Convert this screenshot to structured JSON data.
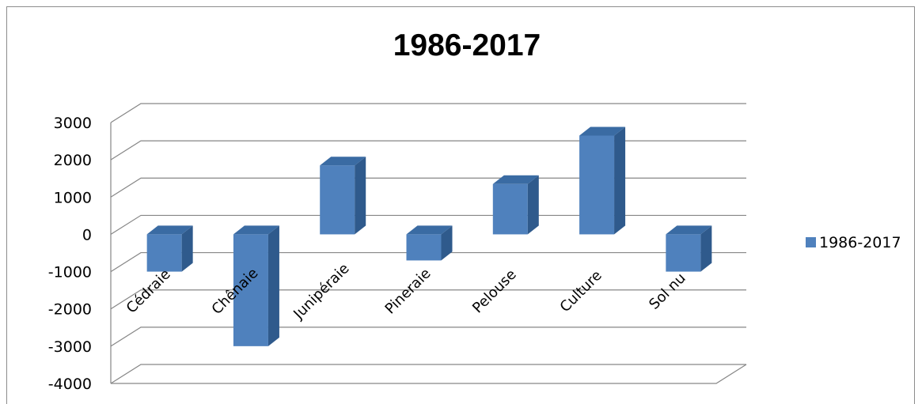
{
  "chart_data": {
    "type": "bar",
    "title": "1986-2017",
    "categories": [
      "Cédraie",
      "Chênaie",
      "Junipéraie",
      "Pineraie",
      "Pelouse",
      "Culture",
      "Sol nu"
    ],
    "series": [
      {
        "name": "1986-2017",
        "values": [
          -1000,
          -3000,
          1850,
          -700,
          1350,
          2650,
          -1000
        ],
        "color": "#4f81bd"
      }
    ],
    "ylim": [
      -4000,
      3000
    ],
    "yticks": [
      "3000",
      "2000",
      "1000",
      "0",
      "-1000",
      "-2000",
      "-3000",
      "-4000"
    ],
    "grid": true,
    "legend_position": "right",
    "style": "3d-column"
  }
}
